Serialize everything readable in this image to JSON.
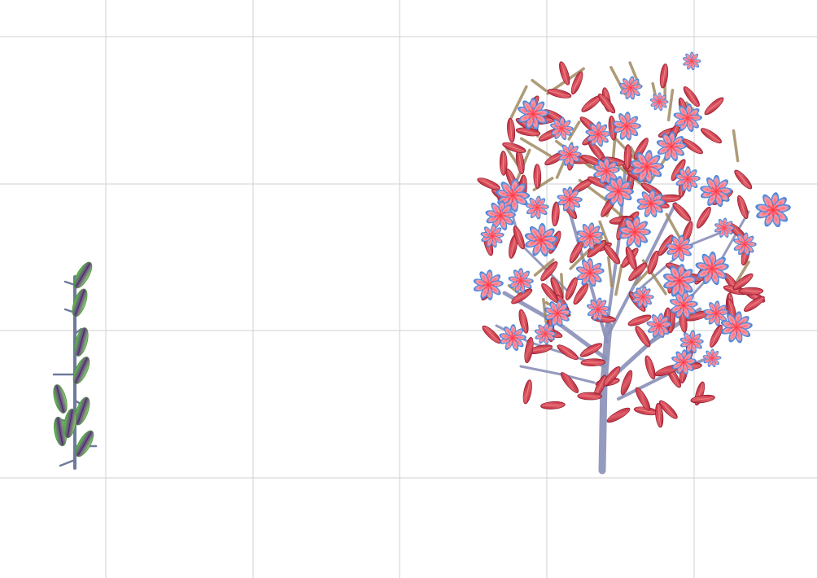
{
  "scene": {
    "background": "#ffffff",
    "grid": {
      "visible": true,
      "color": "#d0d0d0"
    },
    "plants": [
      {
        "id": "small-sprout",
        "type": "sprout",
        "leaves": 9,
        "colors": {
          "stem": "#6f7a9a",
          "leaf_inner": "#7a4a9a",
          "leaf_outer": "#6fc84a"
        }
      },
      {
        "id": "flowering-tree",
        "type": "tree",
        "colors": {
          "trunk": "#8a8fb8",
          "twig": "#a08a60",
          "leaf": "#c0283a",
          "leaf_vein": "#ff8a8a",
          "petal_outer": "#2a6ad0",
          "petal_inner": "#ff5a6a",
          "flower_center": "#ff3a4a"
        }
      }
    ]
  }
}
